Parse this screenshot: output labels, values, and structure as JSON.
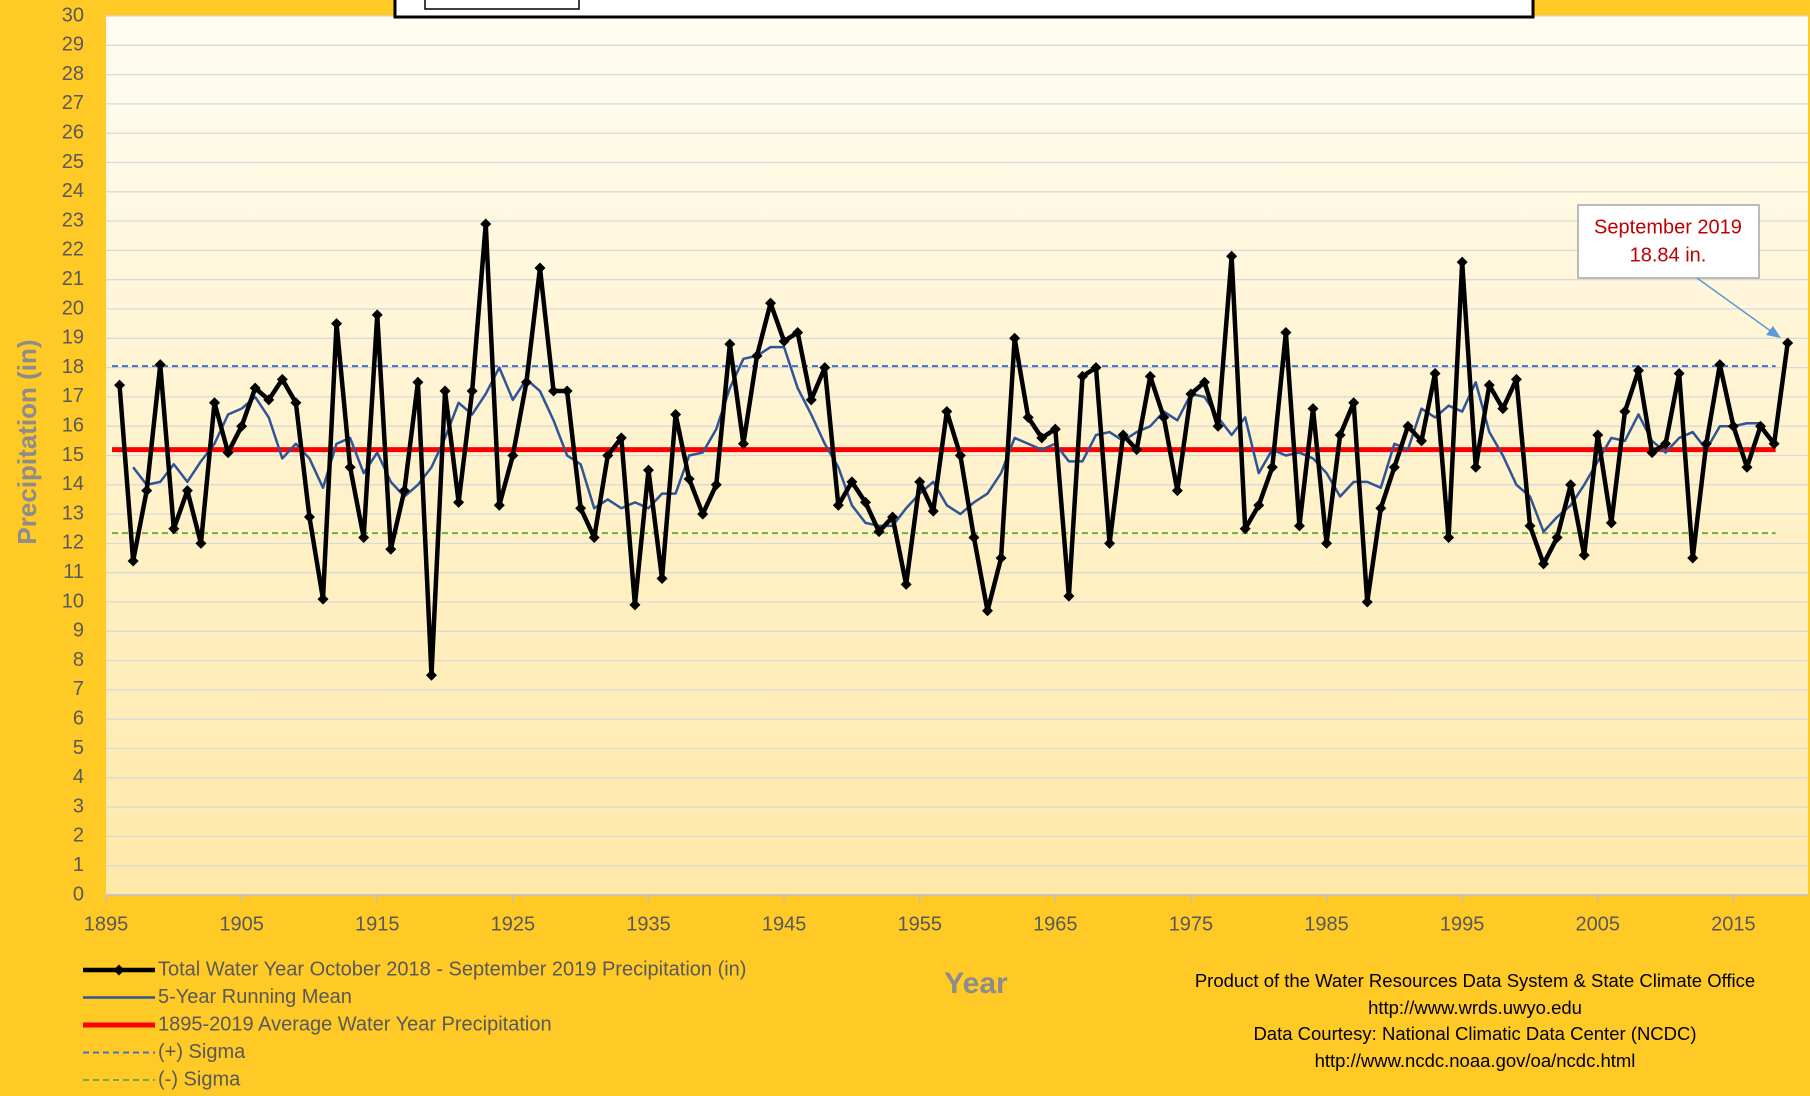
{
  "chart_data": {
    "type": "line",
    "xlabel": "Year",
    "ylabel": "Precipitation (in)",
    "x": [
      1896,
      1897,
      1898,
      1899,
      1900,
      1901,
      1902,
      1903,
      1904,
      1905,
      1906,
      1907,
      1908,
      1909,
      1910,
      1911,
      1912,
      1913,
      1914,
      1915,
      1916,
      1917,
      1918,
      1919,
      1920,
      1921,
      1922,
      1923,
      1924,
      1925,
      1926,
      1927,
      1928,
      1929,
      1930,
      1931,
      1932,
      1933,
      1934,
      1935,
      1936,
      1937,
      1938,
      1939,
      1940,
      1941,
      1942,
      1943,
      1944,
      1945,
      1946,
      1947,
      1948,
      1949,
      1950,
      1951,
      1952,
      1953,
      1954,
      1955,
      1956,
      1957,
      1958,
      1959,
      1960,
      1961,
      1962,
      1963,
      1964,
      1965,
      1966,
      1967,
      1968,
      1969,
      1970,
      1971,
      1972,
      1973,
      1974,
      1975,
      1976,
      1977,
      1978,
      1979,
      1980,
      1981,
      1982,
      1983,
      1984,
      1985,
      1986,
      1987,
      1988,
      1989,
      1990,
      1991,
      1992,
      1993,
      1994,
      1995,
      1996,
      1997,
      1998,
      1999,
      2000,
      2001,
      2002,
      2003,
      2004,
      2005,
      2006,
      2007,
      2008,
      2009,
      2010,
      2011,
      2012,
      2013,
      2014,
      2015,
      2016,
      2017,
      2018,
      2019
    ],
    "series": [
      {
        "name": "Total Water Year October 2018 - September 2019 Precipitation (in)",
        "color": "#000000",
        "marker": "diamond",
        "width": 4.5,
        "values": [
          17.4,
          11.4,
          13.8,
          18.1,
          12.5,
          13.8,
          12.0,
          16.8,
          15.1,
          16.0,
          17.3,
          16.9,
          17.6,
          16.8,
          12.9,
          10.1,
          19.5,
          14.6,
          12.2,
          19.8,
          11.8,
          13.8,
          17.5,
          7.5,
          17.2,
          13.4,
          17.2,
          22.9,
          13.3,
          15.0,
          17.5,
          21.4,
          17.2,
          17.2,
          13.2,
          12.2,
          15.0,
          15.6,
          9.9,
          14.5,
          10.8,
          16.4,
          14.2,
          13.0,
          14.0,
          18.8,
          15.4,
          18.4,
          20.2,
          18.9,
          19.2,
          16.9,
          18.0,
          13.3,
          14.1,
          13.4,
          12.4,
          12.9,
          10.6,
          14.1,
          13.1,
          16.5,
          15.0,
          12.2,
          9.7,
          11.5,
          19.0,
          16.3,
          15.6,
          15.9,
          10.2,
          17.7,
          18.0,
          12.0,
          15.7,
          15.2,
          17.7,
          16.3,
          13.8,
          17.1,
          17.5,
          16.0,
          21.8,
          12.5,
          13.3,
          14.6,
          19.2,
          12.6,
          16.6,
          12.0,
          15.7,
          16.8,
          10.0,
          13.2,
          14.6,
          16.0,
          15.5,
          17.8,
          12.2,
          21.6,
          14.6,
          17.4,
          16.6,
          17.6,
          12.6,
          11.3,
          12.2,
          14.0,
          11.6,
          15.7,
          12.7,
          16.5,
          17.9,
          15.1,
          15.4,
          17.8,
          11.5,
          15.4,
          18.1,
          16.0,
          14.6,
          16.0,
          15.4,
          18.84
        ]
      },
      {
        "name": "5-Year Running Mean",
        "color": "#2F5597",
        "width": 2.5,
        "values": [
          null,
          14.6,
          14.0,
          14.1,
          14.7,
          14.1,
          14.8,
          15.4,
          16.4,
          16.6,
          17.0,
          16.3,
          14.9,
          15.4,
          14.9,
          13.9,
          15.4,
          15.6,
          14.4,
          15.1,
          14.1,
          13.6,
          14.0,
          14.6,
          15.6,
          16.8,
          16.4,
          17.1,
          18.0,
          16.9,
          17.6,
          17.2,
          16.2,
          15.0,
          14.7,
          13.2,
          13.5,
          13.2,
          13.4,
          13.2,
          13.7,
          13.7,
          15.0,
          15.1,
          15.9,
          17.3,
          18.3,
          18.4,
          18.7,
          18.7,
          17.3,
          16.4,
          15.4,
          14.6,
          13.3,
          12.7,
          12.6,
          12.6,
          13.2,
          13.7,
          14.1,
          13.3,
          13.0,
          13.4,
          13.7,
          14.4,
          15.6,
          15.4,
          15.2,
          15.4,
          14.8,
          14.8,
          15.7,
          15.8,
          15.5,
          15.8,
          16.0,
          16.5,
          16.2,
          17.1,
          17.0,
          16.3,
          15.7,
          16.3,
          14.4,
          15.2,
          15.0,
          15.1,
          14.9,
          14.4,
          13.6,
          14.1,
          14.1,
          13.9,
          15.4,
          15.2,
          16.6,
          16.3,
          16.7,
          16.5,
          17.5,
          15.8,
          15.0,
          14.0,
          13.6,
          12.4,
          12.9,
          13.3,
          14.0,
          14.8,
          15.6,
          15.5,
          16.4,
          15.5,
          15.1,
          15.6,
          15.8,
          15.2,
          16.0,
          16.0,
          16.1,
          16.1,
          null,
          null
        ]
      }
    ],
    "reference_lines": [
      {
        "name": "1895-2019 Average Water Year Precipitation",
        "color": "#FF0000",
        "value": 15.2,
        "dashed": false,
        "width": 5
      },
      {
        "name": "(+) Sigma",
        "color": "#4472C4",
        "value": 18.05,
        "dashed": true,
        "width": 2
      },
      {
        "name": "(-) Sigma",
        "color": "#70AD47",
        "value": 12.35,
        "dashed": true,
        "width": 2
      }
    ],
    "xlim": [
      1895,
      2020.5
    ],
    "xticks": [
      1895,
      1905,
      1915,
      1925,
      1935,
      1945,
      1955,
      1965,
      1975,
      1985,
      1995,
      2005,
      2015
    ],
    "ylim": [
      0,
      30
    ],
    "yticks": [
      0,
      1,
      2,
      3,
      4,
      5,
      6,
      7,
      8,
      9,
      10,
      11,
      12,
      13,
      14,
      15,
      16,
      17,
      18,
      19,
      20,
      21,
      22,
      23,
      24,
      25,
      26,
      27,
      28,
      29,
      30
    ],
    "grid": true,
    "legend": "bottom-left",
    "annotation": [
      "September 2019",
      "18.84 in."
    ],
    "footnotes": [
      "Product of the Water Resources Data System & State Climate Office",
      "http://www.wrds.uwyo.edu",
      "Data Courtesy: National Climatic Data Center (NCDC)",
      "http://www.ncdc.noaa.gov/oa/ncdc.html"
    ]
  }
}
